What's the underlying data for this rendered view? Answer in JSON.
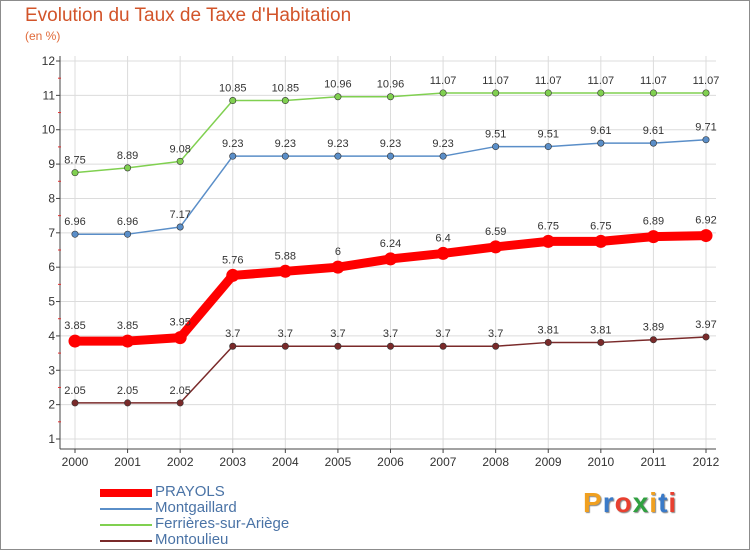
{
  "title": "Evolution du Taux de Taxe d'Habitation",
  "subtitle": "(en %)",
  "logo": {
    "text": "Proxiti",
    "letters": [
      "P",
      "r",
      "o",
      "x",
      "i",
      "t",
      "i"
    ],
    "colors": [
      "#f0a020",
      "#3a7ac8",
      "#e84030",
      "#30a040",
      "#f0a020",
      "#3a7ac8",
      "#e84030"
    ]
  },
  "chart_data": {
    "type": "line",
    "title": "Evolution du Taux de Taxe d'Habitation",
    "ylabel": "(en %)",
    "xlabel": "",
    "x": [
      "2000",
      "2001",
      "2002",
      "2003",
      "2004",
      "2005",
      "2006",
      "2007",
      "2008",
      "2009",
      "2010",
      "2011",
      "2012"
    ],
    "ylim": [
      1,
      12
    ],
    "yticks": [
      "1",
      "2",
      "3",
      "4",
      "5",
      "6",
      "7",
      "8",
      "9",
      "10",
      "11",
      "12"
    ],
    "grid": true,
    "legend_position": "bottom-left",
    "series": [
      {
        "name": "PRAYOLS",
        "color": "#ff0000",
        "emphasis": true,
        "values": [
          3.85,
          3.85,
          3.95,
          5.76,
          5.88,
          6,
          6.24,
          6.4,
          6.59,
          6.75,
          6.75,
          6.89,
          6.92
        ],
        "labels": [
          "3.85",
          "3.85",
          "3.95",
          "5.76",
          "5.88",
          "6",
          "6.24",
          "6.4",
          "6.59",
          "6.75",
          "6.75",
          "6.89",
          "6.92"
        ]
      },
      {
        "name": "Montgaillard",
        "color": "#5a8ec8",
        "emphasis": false,
        "values": [
          6.96,
          6.96,
          7.17,
          9.23,
          9.23,
          9.23,
          9.23,
          9.23,
          9.51,
          9.51,
          9.61,
          9.61,
          9.71
        ],
        "labels": [
          "6.96",
          "6.96",
          "7.17",
          "9.23",
          "9.23",
          "9.23",
          "9.23",
          "9.23",
          "9.51",
          "9.51",
          "9.61",
          "9.61",
          "9.71"
        ]
      },
      {
        "name": "Ferrières-sur-Ariège",
        "color": "#80d050",
        "emphasis": false,
        "values": [
          8.75,
          8.89,
          9.08,
          10.85,
          10.85,
          10.96,
          10.96,
          11.07,
          11.07,
          11.07,
          11.07,
          11.07,
          11.07
        ],
        "labels": [
          "8.75",
          "8.89",
          "9.08",
          "10.85",
          "10.85",
          "10.96",
          "10.96",
          "11.07",
          "11.07",
          "11.07",
          "11.07",
          "11.07",
          "11.07"
        ]
      },
      {
        "name": "Montoulieu",
        "color": "#7a2a2a",
        "emphasis": false,
        "values": [
          2.05,
          2.05,
          2.05,
          3.7,
          3.7,
          3.7,
          3.7,
          3.7,
          3.7,
          3.81,
          3.81,
          3.89,
          3.97
        ],
        "labels": [
          "2.05",
          "2.05",
          "2.05",
          "3.7",
          "3.7",
          "3.7",
          "3.7",
          "3.7",
          "3.7",
          "3.81",
          "3.81",
          "3.89",
          "3.97"
        ]
      }
    ]
  }
}
